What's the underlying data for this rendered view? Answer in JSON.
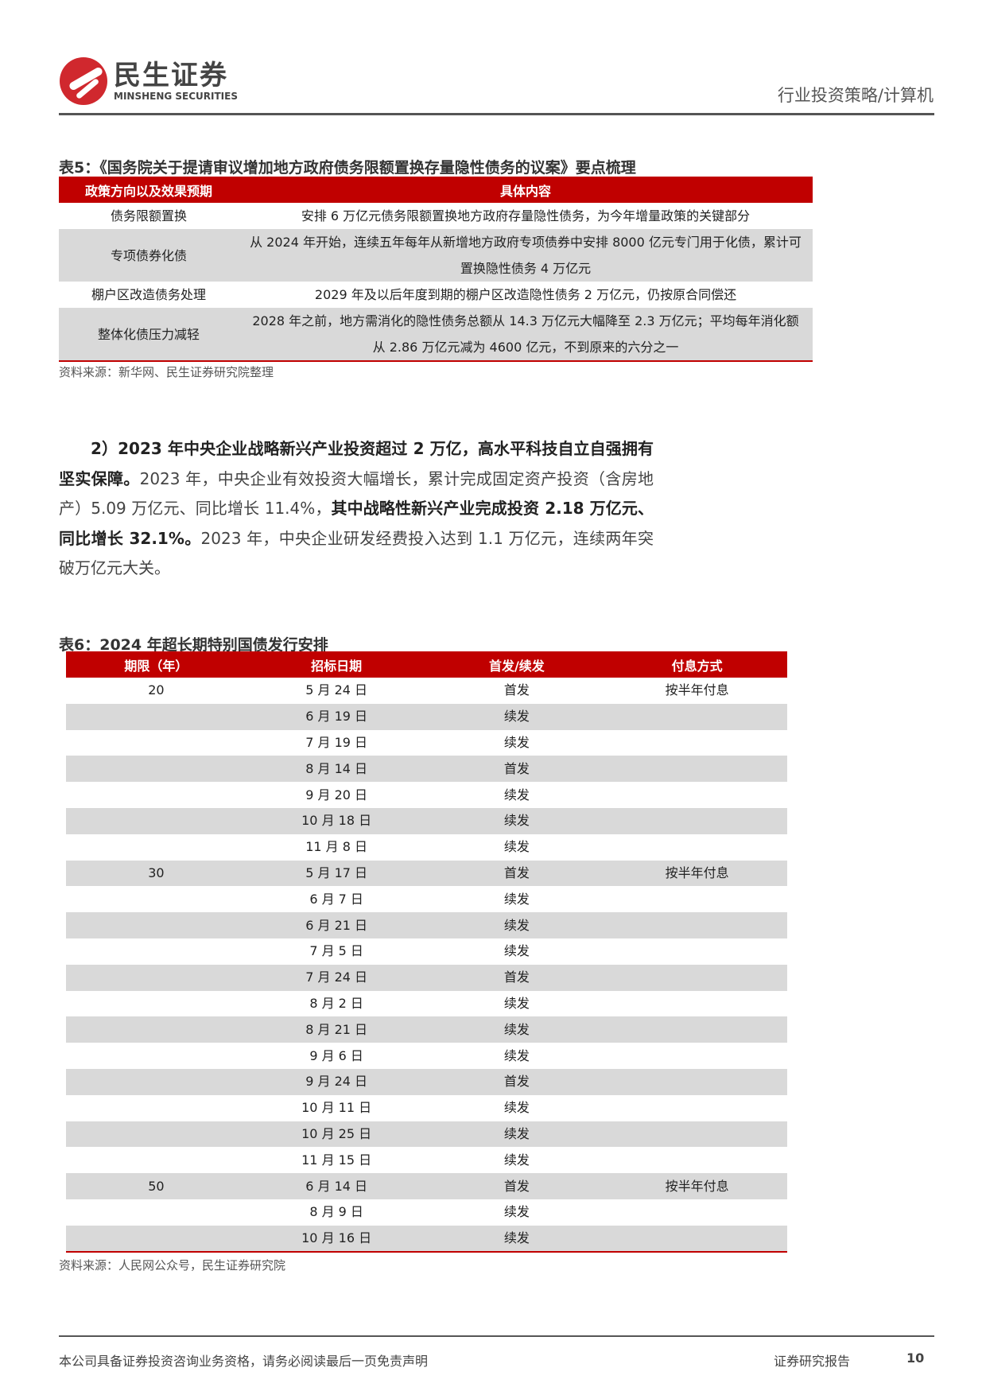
{
  "header": {
    "logo_cn": "民生证券",
    "logo_en": "MINSHENG SECURITIES",
    "section": "行业投资策略/计算机"
  },
  "table5": {
    "title": "表5：《国务院关于提请审议增加地方政府债务限额置换存量隐性债务的议案》要点梳理",
    "headers": [
      "政策方向以及效果预期",
      "具体内容"
    ],
    "rows": [
      [
        "债务限额置换",
        "安排 6 万亿元债务限额置换地方政府存量隐性债务，为今年增量政策的关键部分"
      ],
      [
        "专项债券化债",
        "从 2024 年开始，连续五年每年从新增地方政府专项债券中安排 8000 亿元专门用于化债，累计可置换隐性债务 4 万亿元"
      ],
      [
        "棚户区改造债务处理",
        "2029 年及以后年度到期的棚户区改造隐性债务 2 万亿元，仍按原合同偿还"
      ],
      [
        "整体化债压力减轻",
        "2028 年之前，地方需消化的隐性债务总额从 14.3 万亿元大幅降至 2.3 万亿元；平均每年消化额从 2.86 万亿元减为 4600 亿元，不到原来的六分之一"
      ]
    ],
    "source": "资料来源：新华网、民生证券研究院整理"
  },
  "paragraph": {
    "b1": "2）2023 年中央企业战略新兴产业投资超过 2 万亿，高水平科技自立自强拥有坚实保障。",
    "t1": "2023 年，中央企业有效投资大幅增长，累计完成固定资产投资（含房地产）5.09 万亿元、同比增长 11.4%，",
    "b2": "其中战略性新兴产业完成投资 2.18 万亿元、同比增长 32.1%。",
    "t2": "2023 年，中央企业研发经费投入达到 1.1 万亿元，连续两年突破万亿元大关。"
  },
  "table6": {
    "title": "表6：2024 年超长期特别国债发行安排",
    "headers": [
      "期限（年）",
      "招标日期",
      "首发/续发",
      "付息方式"
    ],
    "rows": [
      [
        "20",
        "5 月 24 日",
        "首发",
        "按半年付息"
      ],
      [
        "",
        "6 月 19 日",
        "续发",
        ""
      ],
      [
        "",
        "7 月 19 日",
        "续发",
        ""
      ],
      [
        "",
        "8 月 14 日",
        "首发",
        ""
      ],
      [
        "",
        "9 月 20 日",
        "续发",
        ""
      ],
      [
        "",
        "10 月 18 日",
        "续发",
        ""
      ],
      [
        "",
        "11 月 8 日",
        "续发",
        ""
      ],
      [
        "30",
        "5 月 17 日",
        "首发",
        "按半年付息"
      ],
      [
        "",
        "6 月 7 日",
        "续发",
        ""
      ],
      [
        "",
        "6 月 21 日",
        "续发",
        ""
      ],
      [
        "",
        "7 月 5 日",
        "续发",
        ""
      ],
      [
        "",
        "7 月 24 日",
        "首发",
        ""
      ],
      [
        "",
        "8 月 2 日",
        "续发",
        ""
      ],
      [
        "",
        "8 月 21 日",
        "续发",
        ""
      ],
      [
        "",
        "9 月 6 日",
        "续发",
        ""
      ],
      [
        "",
        "9 月 24 日",
        "首发",
        ""
      ],
      [
        "",
        "10 月 11 日",
        "续发",
        ""
      ],
      [
        "",
        "10 月 25 日",
        "续发",
        ""
      ],
      [
        "",
        "11 月 15 日",
        "续发",
        ""
      ],
      [
        "50",
        "6 月 14 日",
        "首发",
        "按半年付息"
      ],
      [
        "",
        "8 月 9 日",
        "续发",
        ""
      ],
      [
        "",
        "10 月 16 日",
        "续发",
        ""
      ]
    ],
    "source": "资料来源：人民网公众号，民生证券研究院"
  },
  "footer": {
    "disclaimer": "本公司具备证券投资咨询业务资格，请务必阅读最后一页免责声明",
    "label": "证券研究报告",
    "page": "10"
  },
  "colors": {
    "accent": "#c00000",
    "stripe": "#d9d9d9"
  }
}
